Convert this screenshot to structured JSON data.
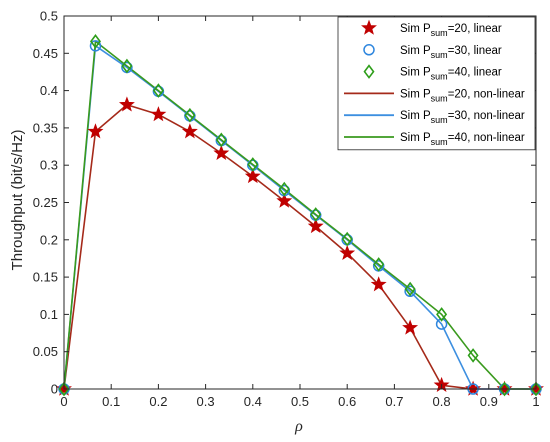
{
  "chart_data": {
    "type": "line",
    "title": "",
    "xlabel": "ρ",
    "ylabel": "Throughput (bit/s/Hz)",
    "xlim": [
      0,
      1
    ],
    "ylim": [
      0,
      0.5
    ],
    "xticks": [
      0,
      0.1,
      0.2,
      0.3,
      0.4,
      0.5,
      0.6,
      0.7,
      0.8,
      0.9,
      1
    ],
    "yticks": [
      0,
      0.05,
      0.1,
      0.15,
      0.2,
      0.25,
      0.3,
      0.35,
      0.4,
      0.45,
      0.5
    ],
    "grid": false,
    "legend_position": "top-right",
    "series": [
      {
        "name": "Sim P_sum=20, linear",
        "legend": {
          "prefix": "Sim P",
          "sub": "sum",
          "suffix": "=20, linear"
        },
        "style": "markers",
        "marker": "star",
        "color": "#c00000",
        "x": [
          0,
          0.0667,
          0.1333,
          0.2,
          0.2667,
          0.3333,
          0.4,
          0.4667,
          0.5333,
          0.6,
          0.6667,
          0.7333,
          0.8,
          0.8667,
          0.9333,
          1
        ],
        "y": [
          0,
          0.345,
          0.381,
          0.368,
          0.345,
          0.316,
          0.285,
          0.252,
          0.218,
          0.182,
          0.14,
          0.082,
          0.005,
          0,
          0,
          0
        ]
      },
      {
        "name": "Sim P_sum=30, linear",
        "legend": {
          "prefix": "Sim P",
          "sub": "sum",
          "suffix": "=30, linear"
        },
        "style": "markers",
        "marker": "circle",
        "color": "#2e86de",
        "x": [
          0,
          0.0667,
          0.1333,
          0.2,
          0.2667,
          0.3333,
          0.4,
          0.4667,
          0.5333,
          0.6,
          0.6667,
          0.7333,
          0.8,
          0.8667,
          0.9333,
          1
        ],
        "y": [
          0,
          0.46,
          0.431,
          0.399,
          0.366,
          0.333,
          0.3,
          0.266,
          0.233,
          0.2,
          0.165,
          0.131,
          0.087,
          0,
          0,
          0
        ]
      },
      {
        "name": "Sim P_sum=40, linear",
        "legend": {
          "prefix": "Sim P",
          "sub": "sum",
          "suffix": "=40, linear"
        },
        "style": "markers",
        "marker": "diamond",
        "color": "#2e9e1a",
        "x": [
          0,
          0.0667,
          0.1333,
          0.2,
          0.2667,
          0.3333,
          0.4,
          0.4667,
          0.5333,
          0.6,
          0.6667,
          0.7333,
          0.8,
          0.8667,
          0.9333,
          1
        ],
        "y": [
          0,
          0.466,
          0.433,
          0.4,
          0.367,
          0.334,
          0.301,
          0.268,
          0.234,
          0.201,
          0.167,
          0.134,
          0.1,
          0.045,
          0,
          0
        ]
      },
      {
        "name": "Sim P_sum=20, non-linear",
        "legend": {
          "prefix": "Sim P",
          "sub": "sum",
          "suffix": "=20, non-linear"
        },
        "style": "line",
        "color": "#a52a1a",
        "x": [
          0,
          0.0667,
          0.1333,
          0.2,
          0.2667,
          0.3333,
          0.4,
          0.4667,
          0.5333,
          0.6,
          0.6667,
          0.7333,
          0.8,
          0.8667,
          0.9333,
          1
        ],
        "y": [
          0,
          0.345,
          0.381,
          0.368,
          0.345,
          0.316,
          0.285,
          0.252,
          0.218,
          0.182,
          0.14,
          0.082,
          0.005,
          0,
          0,
          0
        ]
      },
      {
        "name": "Sim P_sum=30, non-linear",
        "legend": {
          "prefix": "Sim P",
          "sub": "sum",
          "suffix": "=30, non-linear"
        },
        "style": "line",
        "color": "#3d8fe0",
        "x": [
          0,
          0.0667,
          0.1333,
          0.2,
          0.2667,
          0.3333,
          0.4,
          0.4667,
          0.5333,
          0.6,
          0.6667,
          0.7333,
          0.8,
          0.8667,
          0.9333,
          1
        ],
        "y": [
          0,
          0.46,
          0.431,
          0.399,
          0.366,
          0.333,
          0.3,
          0.266,
          0.233,
          0.2,
          0.165,
          0.131,
          0.087,
          0,
          0,
          0
        ]
      },
      {
        "name": "Sim P_sum=40, non-linear",
        "legend": {
          "prefix": "Sim P",
          "sub": "sum",
          "suffix": "=40, non-linear"
        },
        "style": "line",
        "color": "#3a9a1e",
        "x": [
          0,
          0.0667,
          0.1333,
          0.2,
          0.2667,
          0.3333,
          0.4,
          0.4667,
          0.5333,
          0.6,
          0.6667,
          0.7333,
          0.8,
          0.8667,
          0.9333,
          1
        ],
        "y": [
          0,
          0.466,
          0.433,
          0.4,
          0.367,
          0.334,
          0.301,
          0.268,
          0.234,
          0.201,
          0.167,
          0.134,
          0.1,
          0.045,
          0,
          0
        ]
      }
    ]
  }
}
